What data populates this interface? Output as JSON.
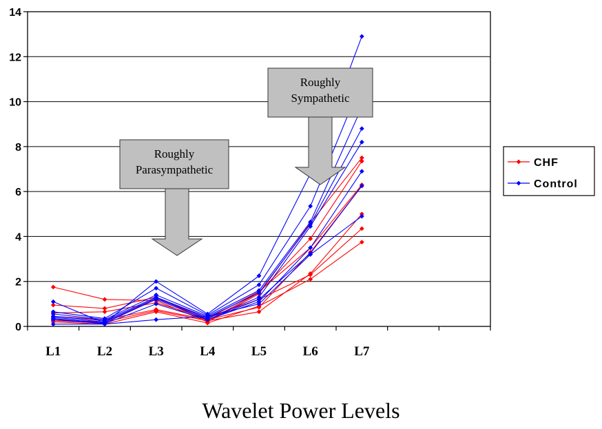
{
  "chart_data": {
    "type": "line",
    "title": "",
    "xlabel": "Wavelet Power Levels",
    "ylabel": "",
    "categories": [
      "L1",
      "L2",
      "L3",
      "L4",
      "L5",
      "L6",
      "L7"
    ],
    "ylim": [
      0,
      14
    ],
    "yticks": [
      0,
      2,
      4,
      6,
      8,
      10,
      12,
      14
    ],
    "grid": "horizontal",
    "legend_position": "right",
    "legend": [
      {
        "label": "CHF",
        "color": "#ff0000"
      },
      {
        "label": "Control",
        "color": "#0000ff"
      }
    ],
    "groups": [
      {
        "label": "CHF",
        "color": "#ff0000",
        "lines": [
          [
            1.75,
            1.2,
            1.15,
            0.2,
            1.45,
            4.6,
            7.5
          ],
          [
            0.95,
            0.8,
            1.3,
            0.25,
            1.5,
            3.9,
            7.35
          ],
          [
            0.6,
            0.65,
            1.05,
            0.35,
            1.55,
            3.5,
            6.3
          ],
          [
            0.45,
            0.3,
            0.75,
            0.3,
            0.85,
            3.3,
            6.25
          ],
          [
            0.3,
            0.2,
            0.7,
            0.25,
            0.65,
            2.35,
            5.0
          ],
          [
            0.25,
            0.15,
            1.25,
            0.4,
            1.2,
            2.3,
            4.35
          ],
          [
            0.2,
            0.1,
            0.65,
            0.15,
            0.9,
            2.1,
            3.75
          ]
        ]
      },
      {
        "label": "Control",
        "color": "#0000ff",
        "lines": [
          [
            1.1,
            0.15,
            2.0,
            0.55,
            2.25,
            6.8,
            12.9
          ],
          [
            0.65,
            0.35,
            1.7,
            0.5,
            1.85,
            5.35,
            10.9
          ],
          [
            0.55,
            0.3,
            1.4,
            0.45,
            1.6,
            4.65,
            9.75
          ],
          [
            0.45,
            0.25,
            1.3,
            0.4,
            1.5,
            4.55,
            8.8
          ],
          [
            0.4,
            0.2,
            1.25,
            0.35,
            1.3,
            4.45,
            8.2
          ],
          [
            0.35,
            0.15,
            1.2,
            0.3,
            1.1,
            3.5,
            6.9
          ],
          [
            0.3,
            0.12,
            1.0,
            0.3,
            1.2,
            3.25,
            6.25
          ],
          [
            0.1,
            0.1,
            0.3,
            0.45,
            1.0,
            3.2,
            4.9
          ]
        ]
      }
    ],
    "annotations": [
      {
        "id": "parasympathetic",
        "lines": [
          "Roughly",
          "Parasympathetic"
        ],
        "target_category": "L3"
      },
      {
        "id": "sympathetic",
        "lines": [
          "Roughly",
          "Sympathetic"
        ],
        "target_category": "L5"
      }
    ]
  },
  "colors": {
    "chf": "#ff0000",
    "control": "#0000ff",
    "grid": "#000000",
    "annotation_fill": "#c0c0c0"
  }
}
